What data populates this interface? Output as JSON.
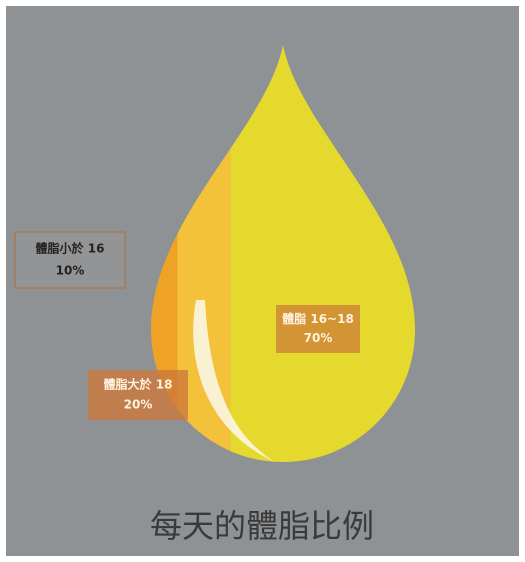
{
  "chart_data": {
    "type": "drop",
    "title": "每天的體脂比例",
    "categories": [
      "體脂小於 16",
      "體脂大於 18",
      "體脂 16~18"
    ],
    "values": [
      10,
      20,
      70
    ],
    "value_labels": [
      "10%",
      "20%",
      "70%"
    ],
    "colors": [
      "#eea326",
      "#f3c23a",
      "#e6d92e"
    ]
  }
}
